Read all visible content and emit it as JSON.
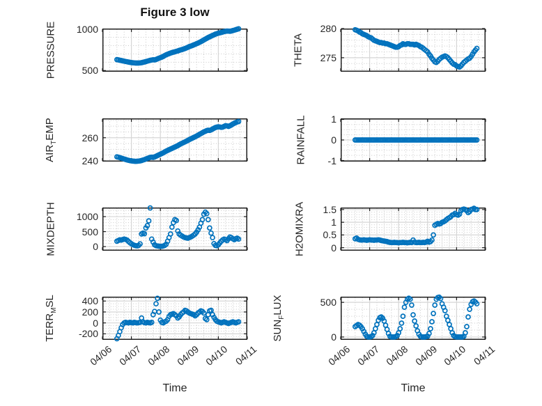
{
  "figure": {
    "title": "Figure 3 low",
    "xlabel": "Time",
    "marker": "open-circle",
    "marker_color": "#0072BD",
    "axis_color": "#1f1f1f",
    "grid_color": "#d6d6d6",
    "minor_grid_color": "#c7c7c7",
    "background": "#ffffff",
    "x_tick_labels": [
      "04/06",
      "04/07",
      "04/08",
      "04/09",
      "04/10",
      "04/11"
    ],
    "xlim_days": [
      0,
      5
    ],
    "x_minor_step_days": 0.25,
    "grid": "on",
    "minor_grid": "dotted"
  },
  "chart_data": [
    {
      "type": "scatter",
      "row": 0,
      "col": 0,
      "label": "PRESSURE",
      "label_parts": [
        {
          "t": "PRESSURE"
        }
      ],
      "ylim": [
        486,
        1005
      ],
      "yticks": [
        500,
        1000
      ],
      "ytick_labels": [
        "500",
        "1000"
      ],
      "y_minor_step": 100,
      "x_start_day": 0.5,
      "x_step_day": 0.05,
      "values": [
        632,
        628,
        624,
        621,
        617,
        613,
        609,
        606,
        602,
        599,
        596,
        594,
        592,
        591,
        591,
        591,
        592,
        595,
        599,
        603,
        608,
        613,
        618,
        623,
        627,
        630,
        628,
        633,
        641,
        648,
        655,
        662,
        670,
        680,
        689,
        697,
        704,
        710,
        716,
        721,
        726,
        731,
        736,
        742,
        748,
        753,
        759,
        765,
        772,
        780,
        788,
        794,
        801,
        808,
        815,
        823,
        831,
        839,
        848,
        858,
        868,
        878,
        888,
        897,
        905,
        914,
        922,
        930,
        938,
        944,
        950,
        954,
        958,
        963,
        968,
        972,
        975,
        974,
        972,
        976,
        981,
        986,
        992,
        997,
        1002
      ]
    },
    {
      "type": "scatter",
      "row": 0,
      "col": 1,
      "label": "THETA",
      "label_parts": [
        {
          "t": "THETA"
        }
      ],
      "ylim": [
        272.6,
        280
      ],
      "yticks": [
        275,
        280
      ],
      "ytick_labels": [
        "275",
        "280"
      ],
      "y_minor_step": 1,
      "x_start_day": 0.5,
      "x_step_day": 0.05,
      "values": [
        279.8,
        279.7,
        279.6,
        279.4,
        279.3,
        279.1,
        279.0,
        278.9,
        278.8,
        278.6,
        278.5,
        278.4,
        278.2,
        278.0,
        277.9,
        277.8,
        277.7,
        277.6,
        277.6,
        277.5,
        277.5,
        277.4,
        277.4,
        277.3,
        277.2,
        277.1,
        277.0,
        276.9,
        276.8,
        276.8,
        276.9,
        277.1,
        277.2,
        277.4,
        277.3,
        277.3,
        277.4,
        277.4,
        277.3,
        277.3,
        277.3,
        277.2,
        277.3,
        277.2,
        277.1,
        276.9,
        276.8,
        276.6,
        276.4,
        276.2,
        276.0,
        275.6,
        275.3,
        274.9,
        274.6,
        274.3,
        274.2,
        274.4,
        274.7,
        274.9,
        275.1,
        275.2,
        275.3,
        275.2,
        275.0,
        274.7,
        274.4,
        274.1,
        273.9,
        273.8,
        273.6,
        273.5,
        273.4,
        273.6,
        273.9,
        274.2,
        274.4,
        274.6,
        274.8,
        274.9,
        275.2,
        275.6,
        276.0,
        276.3,
        276.6
      ]
    },
    {
      "type": "scatter",
      "row": 1,
      "col": 0,
      "label": "AIR_TEMP",
      "label_parts": [
        {
          "t": "AIR"
        },
        {
          "t": "T",
          "sub": true
        },
        {
          "t": "EMP"
        }
      ],
      "ylim": [
        239.4,
        276.7
      ],
      "yticks": [
        240,
        260
      ],
      "ytick_labels": [
        "240",
        "260"
      ],
      "y_minor_step": 5,
      "x_start_day": 0.5,
      "x_step_day": 0.05,
      "values": [
        243.5,
        243.2,
        242.8,
        242.4,
        242.0,
        241.6,
        241.2,
        240.8,
        240.5,
        240.2,
        240.0,
        239.8,
        239.7,
        239.6,
        239.7,
        239.8,
        240.0,
        240.3,
        240.7,
        241.1,
        241.6,
        242.1,
        242.6,
        243.0,
        243.2,
        243.0,
        243.4,
        244.0,
        244.6,
        245.2,
        245.8,
        246.4,
        247.0,
        247.7,
        248.4,
        249.0,
        249.6,
        250.2,
        250.8,
        251.4,
        252.0,
        252.6,
        253.2,
        253.9,
        254.6,
        255.2,
        255.8,
        256.4,
        257.0,
        257.7,
        258.4,
        259.0,
        259.6,
        260.2,
        260.8,
        261.5,
        262.2,
        262.9,
        263.6,
        264.3,
        265.0,
        265.6,
        266.2,
        266.5,
        266.3,
        266.8,
        267.5,
        268.2,
        268.8,
        269.2,
        269.4,
        269.3,
        269.0,
        269.2,
        269.8,
        270.4,
        270.2,
        269.8,
        270.3,
        271.0,
        271.8,
        272.5,
        273.1,
        273.6,
        274.0
      ]
    },
    {
      "type": "scatter",
      "row": 1,
      "col": 1,
      "label": "RAINFALL",
      "label_parts": [
        {
          "t": "RAINFALL"
        }
      ],
      "ylim": [
        -1.05,
        1.05
      ],
      "yticks": [
        -1,
        0,
        1
      ],
      "ytick_labels": [
        "-1",
        "0",
        "1"
      ],
      "y_minor_step": 0.25,
      "x_start_day": 0.5,
      "x_step_day": 0.05,
      "values": [
        0,
        0,
        0,
        0,
        0,
        0,
        0,
        0,
        0,
        0,
        0,
        0,
        0,
        0,
        0,
        0,
        0,
        0,
        0,
        0,
        0,
        0,
        0,
        0,
        0,
        0,
        0,
        0,
        0,
        0,
        0,
        0,
        0,
        0,
        0,
        0,
        0,
        0,
        0,
        0,
        0,
        0,
        0,
        0,
        0,
        0,
        0,
        0,
        0,
        0,
        0,
        0,
        0,
        0,
        0,
        0,
        0,
        0,
        0,
        0,
        0,
        0,
        0,
        0,
        0,
        0,
        0,
        0,
        0,
        0,
        0,
        0,
        0,
        0,
        0,
        0,
        0,
        0,
        0,
        0,
        0,
        0,
        0,
        0,
        0
      ]
    },
    {
      "type": "scatter",
      "row": 2,
      "col": 0,
      "label": "MIXDEPTH",
      "label_parts": [
        {
          "t": "MIXDEPTH"
        }
      ],
      "ylim": [
        -137,
        1303
      ],
      "yticks": [
        0,
        500,
        1000
      ],
      "ytick_labels": [
        "0",
        "500",
        "1000"
      ],
      "y_minor_step": 100,
      "x_start_day": 0.5,
      "x_step_day": 0.05,
      "values": [
        180,
        205,
        225,
        215,
        235,
        250,
        240,
        215,
        175,
        130,
        95,
        65,
        45,
        30,
        25,
        40,
        90,
        420,
        450,
        430,
        620,
        700,
        860,
        1290,
        250,
        150,
        60,
        30,
        20,
        15,
        10,
        10,
        20,
        40,
        80,
        180,
        300,
        420,
        650,
        800,
        900,
        870,
        520,
        420,
        380,
        350,
        320,
        300,
        290,
        280,
        300,
        320,
        350,
        380,
        420,
        480,
        560,
        650,
        780,
        900,
        1080,
        1150,
        1100,
        900,
        620,
        450,
        300,
        100,
        40,
        30,
        60,
        120,
        180,
        220,
        250,
        230,
        200,
        260,
        320,
        300,
        260,
        230,
        260,
        280,
        250
      ]
    },
    {
      "type": "scatter",
      "row": 2,
      "col": 1,
      "label": "H2OMIXRA",
      "label_parts": [
        {
          "t": "H2OMIXRA"
        }
      ],
      "ylim": [
        -0.12,
        1.58
      ],
      "yticks": [
        0,
        0.5,
        1,
        1.5
      ],
      "ytick_labels": [
        "0",
        "0.5",
        "1",
        "1.5"
      ],
      "y_minor_step": 0.1,
      "x_start_day": 0.5,
      "x_step_day": 0.05,
      "values": [
        0.35,
        0.38,
        0.33,
        0.31,
        0.3,
        0.3,
        0.31,
        0.3,
        0.29,
        0.3,
        0.31,
        0.3,
        0.3,
        0.29,
        0.3,
        0.3,
        0.31,
        0.3,
        0.28,
        0.27,
        0.26,
        0.25,
        0.24,
        0.22,
        0.21,
        0.2,
        0.2,
        0.21,
        0.2,
        0.2,
        0.19,
        0.2,
        0.2,
        0.21,
        0.2,
        0.2,
        0.19,
        0.2,
        0.21,
        0.2,
        0.3,
        0.22,
        0.2,
        0.2,
        0.21,
        0.2,
        0.2,
        0.21,
        0.2,
        0.22,
        0.25,
        0.22,
        0.24,
        0.3,
        0.5,
        0.88,
        0.92,
        0.95,
        0.93,
        0.95,
        1.0,
        1.02,
        1.05,
        1.1,
        1.15,
        1.18,
        1.22,
        1.28,
        1.3,
        1.35,
        1.3,
        1.28,
        1.32,
        1.45,
        1.5,
        1.52,
        1.5,
        1.45,
        1.38,
        1.42,
        1.5,
        1.52,
        1.55,
        1.5,
        1.5
      ]
    },
    {
      "type": "scatter",
      "row": 3,
      "col": 0,
      "label": "TERR_MSL",
      "label_parts": [
        {
          "t": "TERR"
        },
        {
          "t": "M",
          "sub": true
        },
        {
          "t": "SL"
        }
      ],
      "ylim": [
        -310,
        480
      ],
      "yticks": [
        -200,
        0,
        200,
        400
      ],
      "ytick_labels": [
        "-200",
        "0",
        "200",
        "400"
      ],
      "y_minor_step": 50,
      "x_start_day": 0.5,
      "x_step_day": 0.05,
      "values": [
        -290,
        -230,
        -160,
        -90,
        -30,
        0,
        10,
        5,
        0,
        10,
        5,
        0,
        10,
        5,
        0,
        5,
        10,
        90,
        20,
        5,
        0,
        10,
        5,
        0,
        10,
        150,
        210,
        350,
        450,
        200,
        50,
        10,
        0,
        20,
        30,
        60,
        120,
        150,
        160,
        170,
        150,
        130,
        90,
        110,
        150,
        180,
        200,
        230,
        220,
        200,
        180,
        170,
        160,
        150,
        130,
        150,
        180,
        200,
        220,
        210,
        180,
        80,
        60,
        150,
        220,
        230,
        150,
        100,
        60,
        30,
        20,
        10,
        0,
        10,
        20,
        10,
        0,
        -10,
        0,
        10,
        20,
        10,
        0,
        10,
        20
      ]
    },
    {
      "type": "scatter",
      "row": 3,
      "col": 1,
      "label": "SUN_FLUX",
      "label_parts": [
        {
          "t": "SUN"
        },
        {
          "t": "F",
          "sub": true
        },
        {
          "t": "LUX"
        }
      ],
      "ylim": [
        -41,
        582
      ],
      "yticks": [
        0,
        500
      ],
      "ytick_labels": [
        "0",
        "500"
      ],
      "y_minor_step": 100,
      "x_start_day": 0.5,
      "x_step_day": 0.05,
      "values": [
        150,
        165,
        180,
        170,
        150,
        120,
        80,
        40,
        10,
        0,
        0,
        5,
        20,
        60,
        120,
        180,
        240,
        280,
        290,
        270,
        230,
        170,
        110,
        50,
        10,
        0,
        0,
        0,
        5,
        20,
        60,
        120,
        200,
        300,
        430,
        500,
        545,
        560,
        545,
        460,
        320,
        230,
        160,
        90,
        40,
        10,
        0,
        0,
        0,
        5,
        10,
        50,
        120,
        220,
        340,
        460,
        545,
        570,
        575,
        555,
        480,
        430,
        380,
        300,
        240,
        180,
        120,
        60,
        20,
        5,
        0,
        0,
        0,
        0,
        0,
        10,
        60,
        150,
        290,
        400,
        470,
        510,
        520,
        505,
        480
      ]
    }
  ]
}
